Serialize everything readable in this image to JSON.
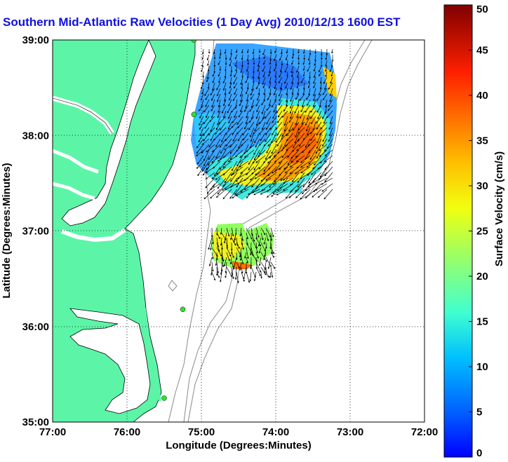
{
  "title": "Southern Mid-Atlantic Raw Velocities (1 Day Avg) 2010/12/13 1600 EST",
  "colors": {
    "title": "#1010e0",
    "land": "#5cf5a8",
    "contour": "#8a8a8a",
    "coast": "#000000",
    "station": "#2ee32e"
  },
  "map": {
    "x_axis": {
      "label": "Longitude (Degrees:Minutes)",
      "ticks": [
        "77:00",
        "76:00",
        "75:00",
        "74:00",
        "73:00",
        "72:00"
      ],
      "range": [
        -77,
        -72
      ]
    },
    "y_axis": {
      "label": "Latitude (Degrees:Minutes)",
      "ticks": [
        "35:00",
        "36:00",
        "37:00",
        "38:00",
        "39:00"
      ],
      "range": [
        35,
        39
      ]
    },
    "grid": "dotted",
    "stations": [
      {
        "lon": -75.1,
        "lat": 39.0
      },
      {
        "lon": -75.1,
        "lat": 38.22
      },
      {
        "lon": -75.25,
        "lat": 36.18
      },
      {
        "lon": -75.5,
        "lat": 35.25
      }
    ]
  },
  "colorbar": {
    "label": "Surface Velocity (cm/s)",
    "ticks": [
      "0",
      "5",
      "10",
      "15",
      "20",
      "25",
      "30",
      "35",
      "40",
      "45",
      "50"
    ],
    "range": [
      0,
      50
    ],
    "colormap": "jet"
  }
}
